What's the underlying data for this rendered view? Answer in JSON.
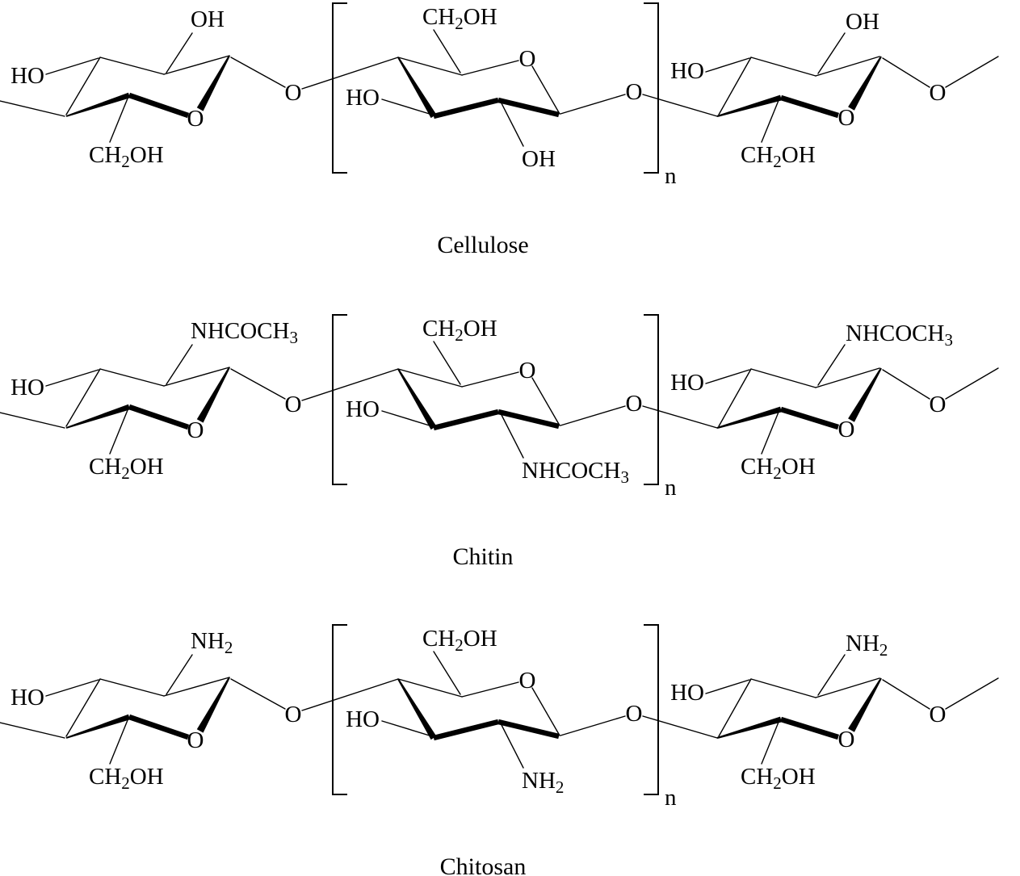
{
  "figure": {
    "background_color": "#ffffff",
    "ink_color": "#000000",
    "description": "Chair-conformation pyranose trimer structures of three polysaccharides"
  },
  "molecules": [
    {
      "name": "Cellulose",
      "ho_left": "HO",
      "ho_mid": "HO",
      "ho_right": "HO",
      "oxygen": "O",
      "repeat": "n",
      "ch2oh": {
        "pre": "CH",
        "sub": "2",
        "post": "OH"
      },
      "c2_left": {
        "pre": "OH",
        "sub": ""
      },
      "c2_mid": {
        "pre": "OH",
        "sub": ""
      },
      "c2_right": {
        "pre": "OH",
        "sub": ""
      }
    },
    {
      "name": "Chitin",
      "ho_left": "HO",
      "ho_mid": "HO",
      "ho_right": "HO",
      "oxygen": "O",
      "repeat": "n",
      "ch2oh": {
        "pre": "CH",
        "sub": "2",
        "post": "OH"
      },
      "c2_left": {
        "pre": "NHCOCH",
        "sub": "3"
      },
      "c2_mid": {
        "pre": "NHCOCH",
        "sub": "3"
      },
      "c2_right": {
        "pre": "NHCOCH",
        "sub": "3"
      }
    },
    {
      "name": "Chitosan",
      "ho_left": "HO",
      "ho_mid": "HO",
      "ho_right": "HO",
      "oxygen": "O",
      "repeat": "n",
      "ch2oh": {
        "pre": "CH",
        "sub": "2",
        "post": "OH"
      },
      "c2_left": {
        "pre": "NH",
        "sub": "2"
      },
      "c2_mid": {
        "pre": "NH",
        "sub": "2"
      },
      "c2_right": {
        "pre": "NH",
        "sub": "2"
      }
    }
  ]
}
